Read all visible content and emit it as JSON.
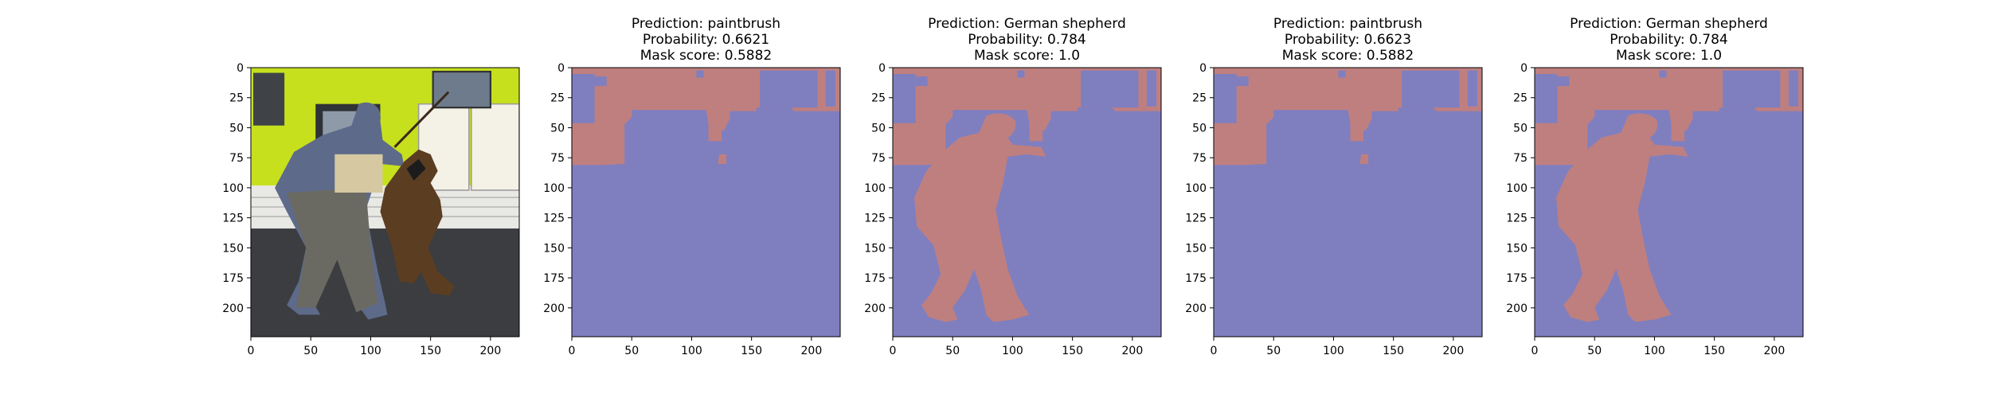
{
  "chart_data": [
    {
      "type": "image",
      "image": "photo",
      "title": [],
      "xticks": [
        "0",
        "50",
        "100",
        "150",
        "200"
      ],
      "yticks": [
        "0",
        "25",
        "50",
        "75",
        "100",
        "125",
        "150",
        "175",
        "200"
      ],
      "xlim": [
        0,
        224
      ],
      "ylim": [
        224,
        0
      ]
    },
    {
      "type": "image",
      "image": "mask-paintbrush",
      "title": [
        "Prediction: paintbrush",
        "Probability: 0.6621",
        "Mask score: 0.5882"
      ],
      "xticks": [
        "0",
        "50",
        "100",
        "150",
        "200"
      ],
      "yticks": [
        "0",
        "25",
        "50",
        "75",
        "100",
        "125",
        "150",
        "175",
        "200"
      ],
      "xlim": [
        0,
        224
      ],
      "ylim": [
        224,
        0
      ]
    },
    {
      "type": "image",
      "image": "mask-german-shepherd",
      "title": [
        "Prediction: German shepherd",
        "Probability: 0.784",
        "Mask score: 1.0"
      ],
      "xticks": [
        "0",
        "50",
        "100",
        "150",
        "200"
      ],
      "yticks": [
        "0",
        "25",
        "50",
        "75",
        "100",
        "125",
        "150",
        "175",
        "200"
      ],
      "xlim": [
        0,
        224
      ],
      "ylim": [
        224,
        0
      ]
    },
    {
      "type": "image",
      "image": "mask-paintbrush",
      "title": [
        "Prediction: paintbrush",
        "Probability: 0.6623",
        "Mask score: 0.5882"
      ],
      "xticks": [
        "0",
        "50",
        "100",
        "150",
        "200"
      ],
      "yticks": [
        "0",
        "25",
        "50",
        "75",
        "100",
        "125",
        "150",
        "175",
        "200"
      ],
      "xlim": [
        0,
        224
      ],
      "ylim": [
        224,
        0
      ]
    },
    {
      "type": "image",
      "image": "mask-german-shepherd",
      "title": [
        "Prediction: German shepherd",
        "Probability: 0.784",
        "Mask score: 1.0"
      ],
      "xticks": [
        "0",
        "50",
        "100",
        "150",
        "200"
      ],
      "yticks": [
        "0",
        "25",
        "50",
        "75",
        "100",
        "125",
        "150",
        "175",
        "200"
      ],
      "xlim": [
        0,
        224
      ],
      "ylim": [
        224,
        0
      ]
    }
  ],
  "colors": {
    "mask_background": "#7f7fbf",
    "mask_foreground": "#bf7f7f",
    "photo_wall": "#c6e01e",
    "photo_floor": "#3b3d40"
  }
}
